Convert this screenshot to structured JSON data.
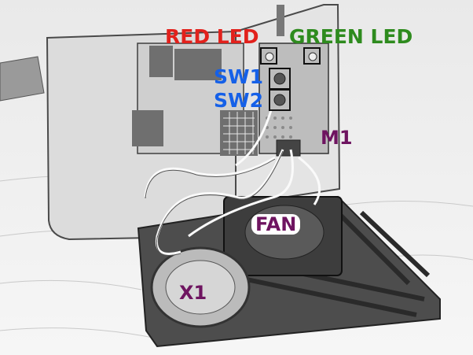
{
  "photo": {
    "subject": "pencil-sketch style photo of an electronics enclosure with exposed wiring, fan and speaker"
  },
  "labels": {
    "red_led": "RED LED",
    "green_led": "GREEN LED",
    "sw1": "SW1",
    "sw2": "SW2",
    "m1": "M1",
    "fan": "FAN",
    "x1": "X1"
  },
  "colors": {
    "red_led": "#e2211c",
    "green_led": "#2e8b1e",
    "switch": "#1560e8",
    "component": "#6e1460",
    "highlight_box": "#111111"
  }
}
